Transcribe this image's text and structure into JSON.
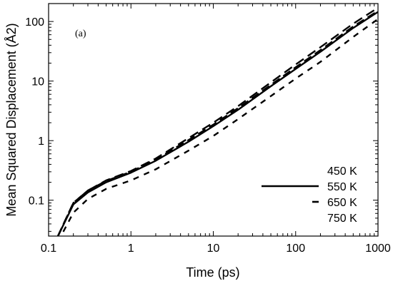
{
  "chart_data": {
    "type": "line",
    "panel_label": "(a)",
    "xlabel": "Time (ps)",
    "ylabel": "Mean Squared Displacement (Å2)",
    "xscale": "log",
    "yscale": "log",
    "xlim": [
      0.1,
      1000
    ],
    "ylim": [
      0.025,
      200
    ],
    "x_ticks": [
      0.1,
      1,
      10,
      100,
      1000
    ],
    "x_tick_labels": [
      "0.1",
      "1",
      "10",
      "100",
      "1000"
    ],
    "y_ticks": [
      0.1,
      1,
      10,
      100
    ],
    "y_tick_labels": [
      "0.1",
      "1",
      "10",
      "100"
    ],
    "legend_position": "bottom-right",
    "series": [
      {
        "name": "450 K",
        "style": "none",
        "x": [
          0.13,
          0.2,
          0.3,
          0.5,
          1,
          2,
          5,
          10,
          20,
          50,
          100,
          200,
          500,
          1000
        ],
        "y": [
          0.02,
          0.062,
          0.105,
          0.155,
          0.215,
          0.33,
          0.68,
          1.2,
          2.3,
          5.6,
          11,
          21,
          55,
          110
        ]
      },
      {
        "name": "550 K",
        "style": "solid",
        "x": [
          0.13,
          0.2,
          0.3,
          0.5,
          1,
          2,
          5,
          10,
          20,
          50,
          100,
          200,
          500,
          1000
        ],
        "y": [
          0.025,
          0.085,
          0.135,
          0.2,
          0.29,
          0.46,
          0.96,
          1.75,
          3.3,
          8.2,
          16,
          31,
          78,
          145
        ]
      },
      {
        "name": "650 K",
        "style": "dashed",
        "x": [
          0.13,
          0.2,
          0.3,
          0.5,
          1,
          2,
          5,
          10,
          20,
          50,
          100,
          200,
          500,
          1000
        ],
        "y": [
          0.025,
          0.09,
          0.145,
          0.21,
          0.3,
          0.48,
          1.02,
          1.85,
          3.5,
          8.6,
          17,
          33,
          82,
          150
        ]
      },
      {
        "name": "750 K",
        "style": "none",
        "x": [
          0.13,
          0.2,
          0.3,
          0.5,
          1,
          2,
          5,
          10,
          20,
          50,
          100,
          200,
          500,
          1000
        ],
        "y": [
          0.025,
          0.09,
          0.145,
          0.215,
          0.31,
          0.5,
          1.1,
          2.0,
          3.8,
          9.5,
          19,
          37,
          92,
          170
        ]
      }
    ]
  }
}
